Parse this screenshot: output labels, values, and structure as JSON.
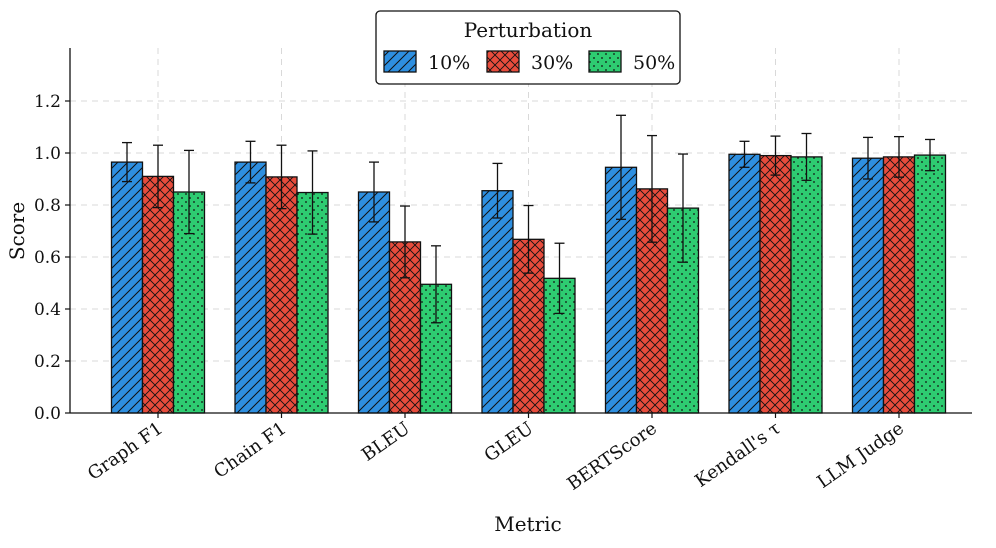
{
  "chart_data": {
    "type": "bar",
    "title": "",
    "xlabel": "Metric",
    "ylabel": "Score",
    "ylim": [
      0,
      1.38
    ],
    "yticks": [
      0.0,
      0.2,
      0.4,
      0.6,
      0.8,
      1.0,
      1.2
    ],
    "ytick_labels": [
      "0.0",
      "0.2",
      "0.4",
      "0.6",
      "0.8",
      "1.0",
      "1.2"
    ],
    "grid": true,
    "categories": [
      "Graph F1",
      "Chain F1",
      "BLEU",
      "GLEU",
      "BERTScore",
      "Kendall's τ",
      "LLM Judge"
    ],
    "legend": {
      "title": "Perturbation",
      "placement": "top-center"
    },
    "series": [
      {
        "name": "10%",
        "color": "#2e8fe0",
        "hatch": "diagonal",
        "values": [
          0.965,
          0.965,
          0.85,
          0.855,
          0.945,
          0.995,
          0.98
        ],
        "errors": [
          0.075,
          0.08,
          0.115,
          0.105,
          0.2,
          0.05,
          0.08
        ]
      },
      {
        "name": "30%",
        "color": "#e74c3c",
        "hatch": "crosshatch",
        "values": [
          0.91,
          0.908,
          0.658,
          0.668,
          0.862,
          0.99,
          0.985
        ],
        "errors": [
          0.12,
          0.122,
          0.138,
          0.13,
          0.205,
          0.075,
          0.078
        ]
      },
      {
        "name": "50%",
        "color": "#2ecc71",
        "hatch": "dots",
        "values": [
          0.85,
          0.848,
          0.495,
          0.518,
          0.788,
          0.985,
          0.992
        ],
        "errors": [
          0.16,
          0.16,
          0.148,
          0.135,
          0.208,
          0.09,
          0.06
        ]
      }
    ]
  }
}
